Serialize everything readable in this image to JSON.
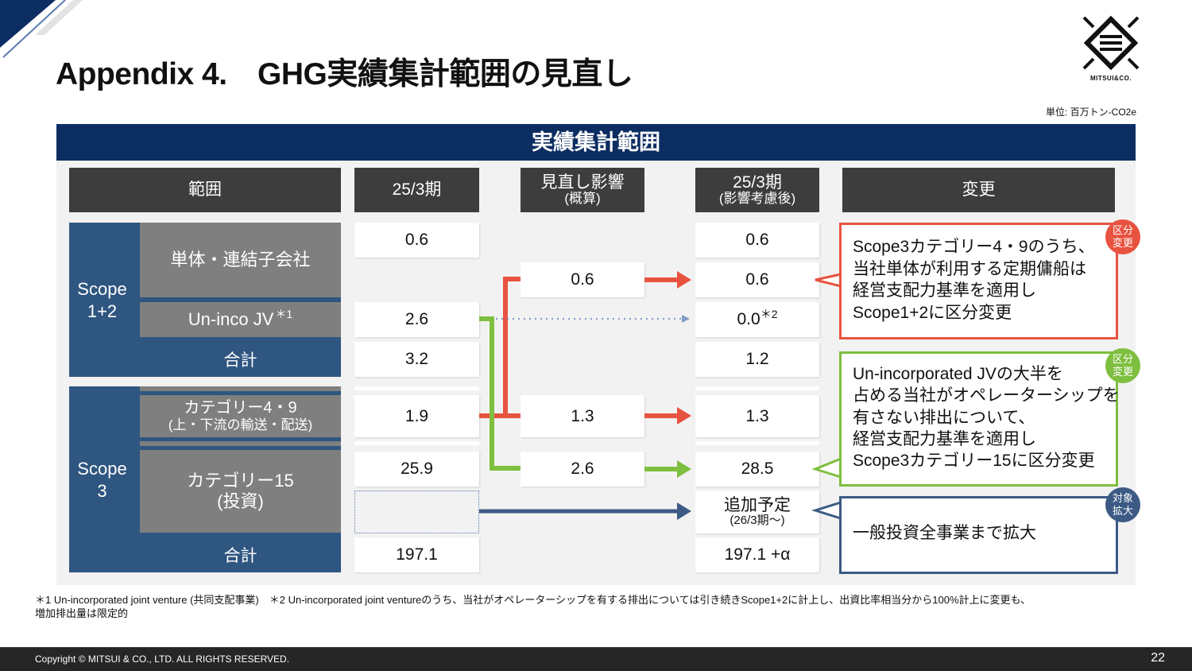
{
  "title": "Appendix 4.　GHG実績集計範囲の見直し",
  "logo": {
    "text": "MITSUI&CO."
  },
  "unit": "単位: 百万トン-CO2e",
  "panel": {
    "title": "実績集計範囲"
  },
  "headers": {
    "scope": "範囲",
    "fy25": "25/3期",
    "impact": "見直し影響",
    "impact_sub": "(概算)",
    "after": "25/3期",
    "after_sub": "(影響考慮後)",
    "change": "変更"
  },
  "scope12": {
    "label_line1": "Scope",
    "label_line2": "1+2",
    "row1": {
      "label": "単体・連結子会社",
      "fy25": "0.6",
      "after_a": "0.6",
      "impact": "0.6",
      "after_b": "0.6"
    },
    "row2": {
      "label": "Un-inco JV",
      "label_note": "＊1",
      "fy25": "2.6",
      "after": "0.0",
      "after_note": "＊2"
    },
    "total": {
      "label": "合計",
      "fy25": "3.2",
      "after": "1.2"
    }
  },
  "scope3": {
    "label_line1": "Scope",
    "label_line2": "3",
    "cat49": {
      "label": "カテゴリー4・9",
      "label_sub": "(上・下流の輸送・配送)",
      "fy25": "1.9",
      "impact": "1.3",
      "after": "1.3"
    },
    "cat15": {
      "label": "カテゴリー15",
      "label_sub": "(投資)",
      "fy25": "25.9",
      "impact": "2.6",
      "after": "28.5"
    },
    "planned": {
      "label": "追加予定",
      "sub": "(26/3期～)"
    },
    "total": {
      "label": "合計",
      "fy25": "197.1",
      "after": "197.1 +α"
    }
  },
  "callouts": [
    {
      "badge": [
        "区分",
        "変更"
      ],
      "color": "#e8533f",
      "lines": [
        "Scope3カテゴリー4・9のうち、",
        "当社単体が利用する定期傭船は",
        "経営支配力基準を適用し",
        "Scope1+2に区分変更"
      ]
    },
    {
      "badge": [
        "区分",
        "変更"
      ],
      "color": "#7ebf3f",
      "lines": [
        "Un-incorporated JVの大半を",
        "占める当社がオペレーターシップを",
        "有さない排出について、",
        "経営支配力基準を適用し",
        "Scope3カテゴリー15に区分変更"
      ]
    },
    {
      "badge": [
        "対象",
        "拡大"
      ],
      "color": "#3c5a84",
      "lines": [
        "一般投資全事業まで拡大"
      ]
    }
  ],
  "colors": {
    "red": "#e8533f",
    "green": "#7ebf3f",
    "navy": "#3c5a84",
    "header": "#0c2d62"
  },
  "footnotes": {
    "line1": "＊1 Un-incorporated joint venture (共同支配事業)　＊2 Un-incorporated joint ventureのうち、当社がオペレーターシップを有する排出については引き続きScope1+2に計上し、出資比率相当分から100%計上に変更も、",
    "line2": "増加排出量は限定的"
  },
  "footer": {
    "copyright": "Copyright © MITSUI & CO., LTD. ALL RIGHTS RESERVED.",
    "page": "22"
  }
}
